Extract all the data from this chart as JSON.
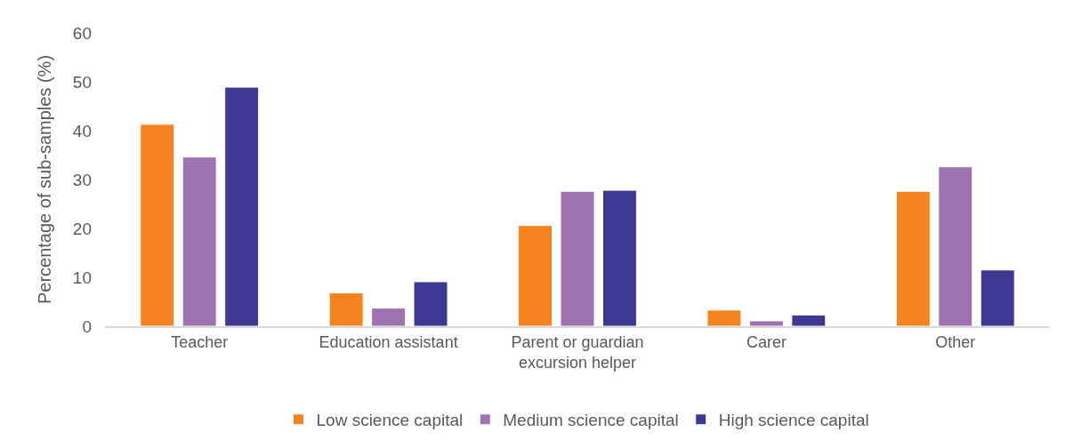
{
  "chart_data": {
    "type": "bar",
    "ylabel": "Percentage of sub-samples (%)",
    "categories": [
      "Teacher",
      "Education assistant",
      "Parent or guardian excursion helper",
      "Carer",
      "Other"
    ],
    "series": [
      {
        "name": "Low science capital",
        "color": "#f4831f",
        "values": [
          41.3,
          6.8,
          20.6,
          3.3,
          27.6
        ]
      },
      {
        "name": "Medium science capital",
        "color": "#9c72b0",
        "values": [
          34.6,
          3.7,
          27.6,
          1.1,
          32.6
        ]
      },
      {
        "name": "High science capital",
        "color": "#3f3893",
        "values": [
          48.9,
          9.1,
          27.8,
          2.3,
          11.5
        ]
      }
    ],
    "ylim": [
      0,
      60
    ],
    "yticks": [
      0,
      10,
      20,
      30,
      40,
      50,
      60
    ],
    "legend": "bottom"
  }
}
